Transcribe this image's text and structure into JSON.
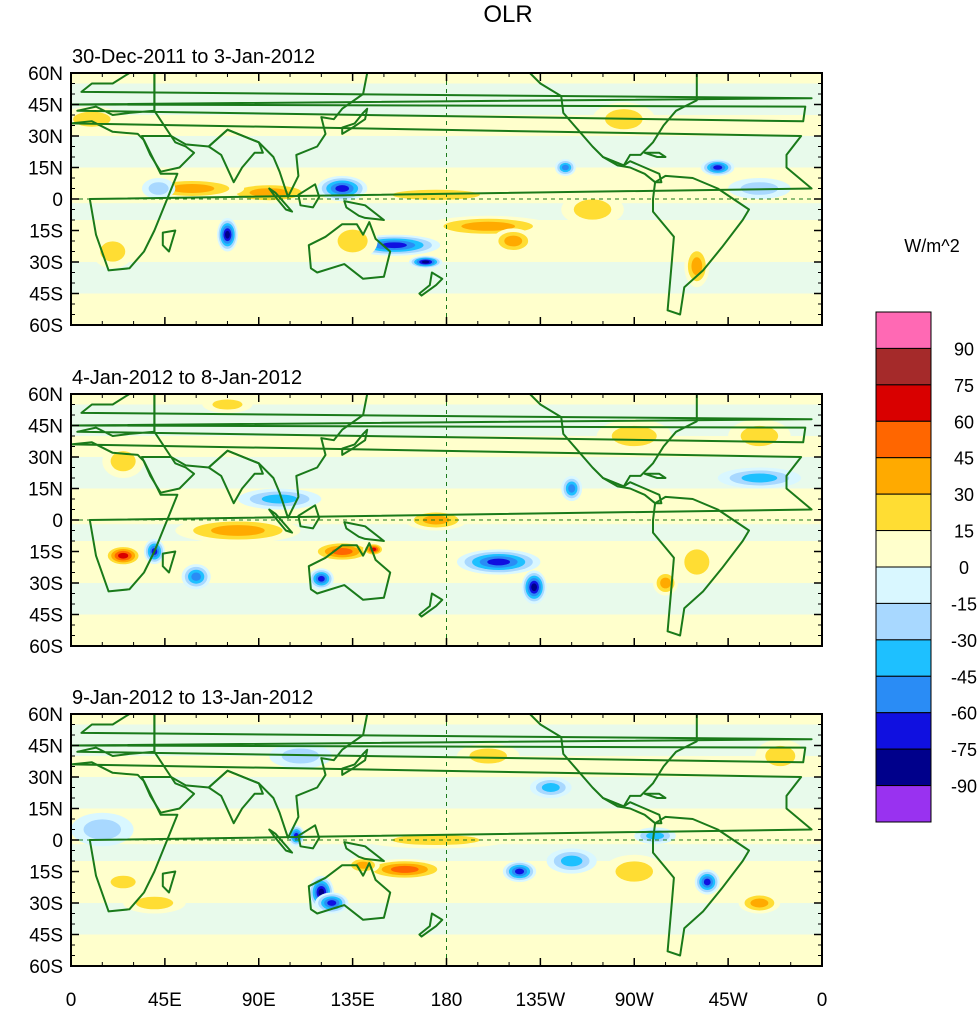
{
  "title": "OLR",
  "colorbar": {
    "unit_label": "W/m^2",
    "levels": [
      "90",
      "75",
      "60",
      "45",
      "30",
      "15",
      "0",
      "-15",
      "-30",
      "-45",
      "-60",
      "-75",
      "-90"
    ],
    "colors": [
      "#ff69b4",
      "#a52a2a",
      "#d90000",
      "#ff6600",
      "#ffaa00",
      "#ffdd33",
      "#ffffcc",
      "#d9f7ff",
      "#a8d8ff",
      "#1ec0ff",
      "#2a8cf5",
      "#1010e0",
      "#00008b",
      "#9932f0"
    ]
  },
  "axes": {
    "lat_ticks": [
      "60N",
      "45N",
      "30N",
      "15N",
      "0",
      "15S",
      "30S",
      "45S",
      "60S"
    ],
    "lon_ticks": [
      "0",
      "45E",
      "90E",
      "135E",
      "180",
      "135W",
      "90W",
      "45W",
      "0"
    ],
    "lat_range": [
      -60,
      60
    ],
    "lon_range": [
      0,
      360
    ]
  },
  "panels": [
    {
      "label": "30-Dec-2011 to 3-Jan-2012",
      "anomalies": [
        {
          "lon": 95,
          "lat": 3,
          "rx": 22,
          "ry": 5,
          "v": 40
        },
        {
          "lon": 58,
          "lat": 5,
          "rx": 25,
          "ry": 5,
          "v": 30
        },
        {
          "lon": 75,
          "lat": -17,
          "rx": 5,
          "ry": 8,
          "v": -80
        },
        {
          "lon": 130,
          "lat": 5,
          "rx": 12,
          "ry": 6,
          "v": -70
        },
        {
          "lon": 155,
          "lat": -22,
          "rx": 22,
          "ry": 5,
          "v": -60
        },
        {
          "lon": 170,
          "lat": -30,
          "rx": 8,
          "ry": 3,
          "v": -80
        },
        {
          "lon": 200,
          "lat": -13,
          "rx": 30,
          "ry": 5,
          "v": 30
        },
        {
          "lon": 212,
          "lat": -20,
          "rx": 10,
          "ry": 6,
          "v": 40
        },
        {
          "lon": 135,
          "lat": -20,
          "rx": 12,
          "ry": 9,
          "v": 25
        },
        {
          "lon": 175,
          "lat": 2,
          "rx": 35,
          "ry": 4,
          "v": 20
        },
        {
          "lon": 237,
          "lat": 15,
          "rx": 5,
          "ry": 4,
          "v": -50
        },
        {
          "lon": 310,
          "lat": 15,
          "rx": 8,
          "ry": 4,
          "v": -60
        },
        {
          "lon": 300,
          "lat": -32,
          "rx": 6,
          "ry": 10,
          "v": 35
        },
        {
          "lon": 265,
          "lat": 38,
          "rx": 15,
          "ry": 8,
          "v": 15
        },
        {
          "lon": 20,
          "lat": -25,
          "rx": 10,
          "ry": 8,
          "v": 15
        },
        {
          "lon": 10,
          "lat": 38,
          "rx": 15,
          "ry": 6,
          "v": 15
        },
        {
          "lon": 42,
          "lat": 5,
          "rx": 8,
          "ry": 5,
          "v": -20
        },
        {
          "lon": 250,
          "lat": -5,
          "rx": 15,
          "ry": 8,
          "v": 15
        },
        {
          "lon": 330,
          "lat": 5,
          "rx": 15,
          "ry": 5,
          "v": -15
        }
      ]
    },
    {
      "label": "4-Jan-2012 to 8-Jan-2012",
      "anomalies": [
        {
          "lon": 25,
          "lat": -17,
          "rx": 9,
          "ry": 5,
          "v": 65
        },
        {
          "lon": 40,
          "lat": -15,
          "rx": 5,
          "ry": 6,
          "v": -70
        },
        {
          "lon": 80,
          "lat": -5,
          "rx": 30,
          "ry": 6,
          "v": 40
        },
        {
          "lon": 130,
          "lat": -15,
          "rx": 15,
          "ry": 5,
          "v": 45
        },
        {
          "lon": 145,
          "lat": -14,
          "rx": 5,
          "ry": 3,
          "v": 60
        },
        {
          "lon": 120,
          "lat": -28,
          "rx": 6,
          "ry": 5,
          "v": -60
        },
        {
          "lon": 205,
          "lat": -20,
          "rx": 20,
          "ry": 6,
          "v": -60
        },
        {
          "lon": 222,
          "lat": -32,
          "rx": 6,
          "ry": 8,
          "v": -80
        },
        {
          "lon": 175,
          "lat": 0,
          "rx": 15,
          "ry": 5,
          "v": 30
        },
        {
          "lon": 60,
          "lat": -27,
          "rx": 7,
          "ry": 6,
          "v": -45
        },
        {
          "lon": 100,
          "lat": 10,
          "rx": 20,
          "ry": 5,
          "v": -30
        },
        {
          "lon": 240,
          "lat": 15,
          "rx": 5,
          "ry": 6,
          "v": -45
        },
        {
          "lon": 330,
          "lat": 20,
          "rx": 20,
          "ry": 5,
          "v": -30
        },
        {
          "lon": 300,
          "lat": -20,
          "rx": 10,
          "ry": 10,
          "v": 25
        },
        {
          "lon": 285,
          "lat": -30,
          "rx": 6,
          "ry": 6,
          "v": 30
        },
        {
          "lon": 270,
          "lat": 40,
          "rx": 18,
          "ry": 8,
          "v": 20
        },
        {
          "lon": 330,
          "lat": 40,
          "rx": 15,
          "ry": 8,
          "v": 20
        },
        {
          "lon": 25,
          "lat": 28,
          "rx": 10,
          "ry": 8,
          "v": 15
        },
        {
          "lon": 75,
          "lat": 55,
          "rx": 12,
          "ry": 4,
          "v": 20
        }
      ]
    },
    {
      "label": "9-Jan-2012 to 13-Jan-2012",
      "anomalies": [
        {
          "lon": 120,
          "lat": -25,
          "rx": 6,
          "ry": 8,
          "v": -80
        },
        {
          "lon": 125,
          "lat": -30,
          "rx": 8,
          "ry": 5,
          "v": -70
        },
        {
          "lon": 108,
          "lat": 2,
          "rx": 4,
          "ry": 5,
          "v": -70
        },
        {
          "lon": 160,
          "lat": -14,
          "rx": 20,
          "ry": 5,
          "v": 45
        },
        {
          "lon": 140,
          "lat": -12,
          "rx": 8,
          "ry": 4,
          "v": 40
        },
        {
          "lon": 175,
          "lat": 0,
          "rx": 35,
          "ry": 4,
          "v": 25
        },
        {
          "lon": 215,
          "lat": -15,
          "rx": 8,
          "ry": 5,
          "v": -60
        },
        {
          "lon": 240,
          "lat": -10,
          "rx": 12,
          "ry": 6,
          "v": -40
        },
        {
          "lon": 270,
          "lat": -15,
          "rx": 15,
          "ry": 8,
          "v": 15
        },
        {
          "lon": 305,
          "lat": -20,
          "rx": 6,
          "ry": 6,
          "v": -60
        },
        {
          "lon": 330,
          "lat": -30,
          "rx": 10,
          "ry": 5,
          "v": 30
        },
        {
          "lon": 25,
          "lat": -20,
          "rx": 10,
          "ry": 5,
          "v": 25
        },
        {
          "lon": 40,
          "lat": -30,
          "rx": 15,
          "ry": 5,
          "v": 20
        },
        {
          "lon": 230,
          "lat": 25,
          "rx": 10,
          "ry": 5,
          "v": -35
        },
        {
          "lon": 280,
          "lat": 2,
          "rx": 10,
          "ry": 4,
          "v": -30
        },
        {
          "lon": 15,
          "lat": 5,
          "rx": 15,
          "ry": 8,
          "v": -20
        },
        {
          "lon": 200,
          "lat": 40,
          "rx": 15,
          "ry": 6,
          "v": 15
        },
        {
          "lon": 110,
          "lat": 40,
          "rx": 15,
          "ry": 6,
          "v": -15
        },
        {
          "lon": 340,
          "lat": 40,
          "rx": 12,
          "ry": 8,
          "v": 20
        }
      ]
    }
  ]
}
